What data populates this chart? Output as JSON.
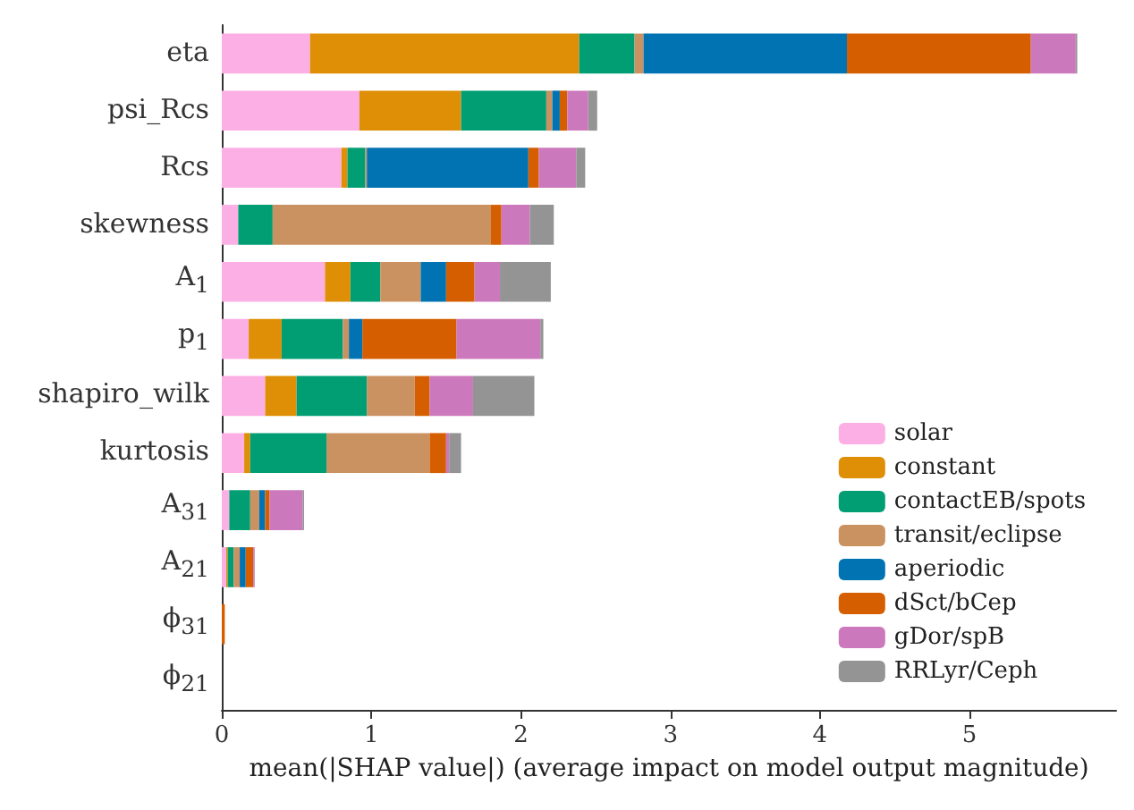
{
  "chart_data": {
    "type": "bar",
    "orientation": "horizontal",
    "stacked": true,
    "xlabel": "mean(|SHAP value|) (average impact on model output magnitude)",
    "categories": [
      "eta",
      "psi_Rcs",
      "Rcs",
      "skewness",
      "A$_{1}$",
      "p$_{1}$",
      "shapiro_wilk",
      "kurtosis",
      "A$_{31}$",
      "A$_{21}$",
      "ϕ$_{31}$",
      "ϕ$_{21}$"
    ],
    "xlim": [
      0,
      5.98
    ],
    "xticks": [
      0,
      1,
      2,
      3,
      4,
      5
    ],
    "grid": false,
    "legend": "bottom right",
    "series": [
      {
        "name": "solar",
        "color": "#fbafe4",
        "values": [
          0.59,
          0.92,
          0.8,
          0.11,
          0.69,
          0.18,
          0.29,
          0.15,
          0.05,
          0.03,
          0,
          0
        ]
      },
      {
        "name": "constant",
        "color": "#de8f05",
        "values": [
          1.8,
          0.68,
          0.04,
          0,
          0.17,
          0.22,
          0.21,
          0.04,
          0,
          0.01,
          0,
          0
        ]
      },
      {
        "name": "contactEB/spots",
        "color": "#029e73",
        "values": [
          0.37,
          0.57,
          0.12,
          0.23,
          0.2,
          0.41,
          0.47,
          0.51,
          0.14,
          0.04,
          0,
          0
        ]
      },
      {
        "name": "transit/eclipse",
        "color": "#ca9161",
        "values": [
          0.06,
          0.04,
          0.01,
          1.46,
          0.27,
          0.04,
          0.32,
          0.69,
          0.06,
          0.04,
          0,
          0
        ]
      },
      {
        "name": "aperiodic",
        "color": "#0173b2",
        "values": [
          1.36,
          0.05,
          1.08,
          0,
          0.17,
          0.09,
          0,
          0,
          0.04,
          0.04,
          0,
          0
        ]
      },
      {
        "name": "dSct/bCep",
        "color": "#d55e00",
        "values": [
          1.23,
          0.05,
          0.07,
          0.07,
          0.19,
          0.63,
          0.1,
          0.11,
          0.03,
          0.05,
          0.02,
          0
        ]
      },
      {
        "name": "gDor/spB",
        "color": "#cc78bc",
        "values": [
          0.3,
          0.14,
          0.25,
          0.19,
          0.17,
          0.56,
          0.29,
          0.02,
          0.22,
          0.01,
          0,
          0
        ]
      },
      {
        "name": "RRLyr/Ceph",
        "color": "#949494",
        "values": [
          0.01,
          0.06,
          0.06,
          0.16,
          0.34,
          0.02,
          0.41,
          0.08,
          0.01,
          0,
          0,
          0
        ]
      }
    ]
  }
}
